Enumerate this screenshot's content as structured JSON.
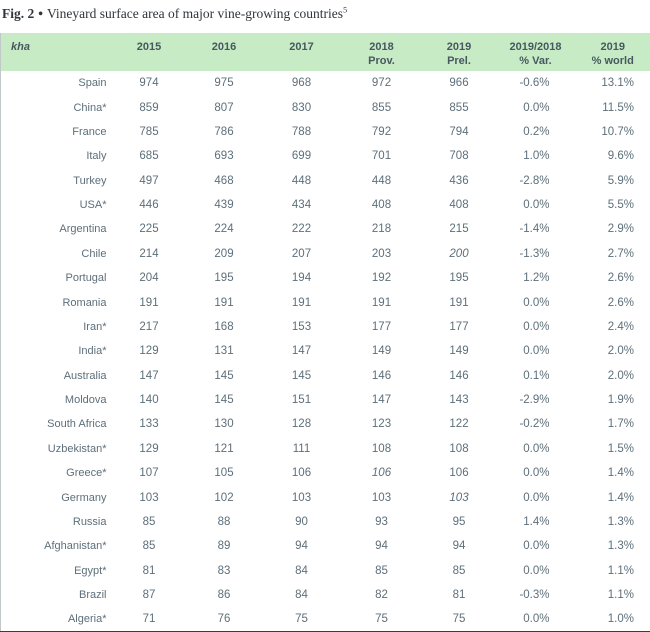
{
  "figure": {
    "label": "Fig. 2",
    "separator": "•",
    "title": "Vineyard surface area of major vine-growing countries",
    "footnote_marker": "5"
  },
  "colors": {
    "header_background": "#c7ebc5",
    "header_text": "#47585e",
    "body_text": "#5d6f7a",
    "title_text": "#2f353b",
    "bottom_border": "#2f3e55"
  },
  "chart_data": {
    "type": "table",
    "title": "Fig. 2 • Vineyard surface area of major vine-growing countries",
    "unit_label": "kha",
    "columns": [
      {
        "line1": "2015",
        "line2": ""
      },
      {
        "line1": "2016",
        "line2": ""
      },
      {
        "line1": "2017",
        "line2": ""
      },
      {
        "line1": "2018",
        "line2": "Prov."
      },
      {
        "line1": "2019",
        "line2": "Prel."
      },
      {
        "line1": "2019/2018",
        "line2": "% Var."
      },
      {
        "line1": "2019",
        "line2": "% world"
      }
    ],
    "rows": [
      {
        "country": "Spain",
        "values": [
          "974",
          "975",
          "968",
          "972",
          "966",
          "-0.6%",
          "13.1%"
        ],
        "italic_cols": []
      },
      {
        "country": "China*",
        "values": [
          "859",
          "807",
          "830",
          "855",
          "855",
          "0.0%",
          "11.5%"
        ],
        "italic_cols": []
      },
      {
        "country": "France",
        "values": [
          "785",
          "786",
          "788",
          "792",
          "794",
          "0.2%",
          "10.7%"
        ],
        "italic_cols": []
      },
      {
        "country": "Italy",
        "values": [
          "685",
          "693",
          "699",
          "701",
          "708",
          "1.0%",
          "9.6%"
        ],
        "italic_cols": []
      },
      {
        "country": "Turkey",
        "values": [
          "497",
          "468",
          "448",
          "448",
          "436",
          "-2.8%",
          "5.9%"
        ],
        "italic_cols": []
      },
      {
        "country": "USA*",
        "values": [
          "446",
          "439",
          "434",
          "408",
          "408",
          "0.0%",
          "5.5%"
        ],
        "italic_cols": []
      },
      {
        "country": "Argentina",
        "values": [
          "225",
          "224",
          "222",
          "218",
          "215",
          "-1.4%",
          "2.9%"
        ],
        "italic_cols": []
      },
      {
        "country": "Chile",
        "values": [
          "214",
          "209",
          "207",
          "203",
          "200",
          "-1.3%",
          "2.7%"
        ],
        "italic_cols": [
          4
        ]
      },
      {
        "country": "Portugal",
        "values": [
          "204",
          "195",
          "194",
          "192",
          "195",
          "1.2%",
          "2.6%"
        ],
        "italic_cols": []
      },
      {
        "country": "Romania",
        "values": [
          "191",
          "191",
          "191",
          "191",
          "191",
          "0.0%",
          "2.6%"
        ],
        "italic_cols": []
      },
      {
        "country": "Iran*",
        "values": [
          "217",
          "168",
          "153",
          "177",
          "177",
          "0.0%",
          "2.4%"
        ],
        "italic_cols": []
      },
      {
        "country": "India*",
        "values": [
          "129",
          "131",
          "147",
          "149",
          "149",
          "0.0%",
          "2.0%"
        ],
        "italic_cols": []
      },
      {
        "country": "Australia",
        "values": [
          "147",
          "145",
          "145",
          "146",
          "146",
          "0.1%",
          "2.0%"
        ],
        "italic_cols": []
      },
      {
        "country": "Moldova",
        "values": [
          "140",
          "145",
          "151",
          "147",
          "143",
          "-2.9%",
          "1.9%"
        ],
        "italic_cols": []
      },
      {
        "country": "South Africa",
        "values": [
          "133",
          "130",
          "128",
          "123",
          "122",
          "-0.2%",
          "1.7%"
        ],
        "italic_cols": []
      },
      {
        "country": "Uzbekistan*",
        "values": [
          "129",
          "121",
          "111",
          "108",
          "108",
          "0.0%",
          "1.5%"
        ],
        "italic_cols": []
      },
      {
        "country": "Greece*",
        "values": [
          "107",
          "105",
          "106",
          "106",
          "106",
          "0.0%",
          "1.4%"
        ],
        "italic_cols": [
          3
        ]
      },
      {
        "country": "Germany",
        "values": [
          "103",
          "102",
          "103",
          "103",
          "103",
          "0.0%",
          "1.4%"
        ],
        "italic_cols": [
          4
        ]
      },
      {
        "country": "Russia",
        "values": [
          "85",
          "88",
          "90",
          "93",
          "95",
          "1.4%",
          "1.3%"
        ],
        "italic_cols": []
      },
      {
        "country": "Afghanistan*",
        "values": [
          "85",
          "89",
          "94",
          "94",
          "94",
          "0.0%",
          "1.3%"
        ],
        "italic_cols": []
      },
      {
        "country": "Egypt*",
        "values": [
          "81",
          "83",
          "84",
          "85",
          "85",
          "0.0%",
          "1.1%"
        ],
        "italic_cols": []
      },
      {
        "country": "Brazil",
        "values": [
          "87",
          "86",
          "84",
          "82",
          "81",
          "-0.3%",
          "1.1%"
        ],
        "italic_cols": []
      },
      {
        "country": "Algeria*",
        "values": [
          "71",
          "76",
          "75",
          "75",
          "75",
          "0.0%",
          "1.0%"
        ],
        "italic_cols": []
      }
    ]
  }
}
